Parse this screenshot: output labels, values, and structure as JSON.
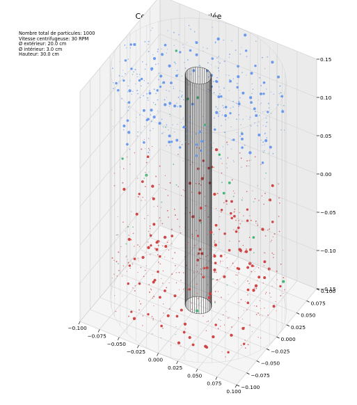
{
  "chart_data": {
    "type": "scatter",
    "projection": "3d",
    "title": "Centrifugeuse simulée",
    "info_lines": [
      "Nombre total de particules: 1000",
      "Vitesse centrifugeuse: 30 RPM",
      "Ø extérieur: 20.0 cm",
      "Ø intérieur: 3.0 cm",
      "Hauteur: 30.0 cm"
    ],
    "xlim": [
      -0.1,
      0.1
    ],
    "ylim": [
      -0.1,
      0.1
    ],
    "zlim": [
      -0.15,
      0.15
    ],
    "x_ticks": [
      "−0.100",
      "−0.075",
      "−0.050",
      "−0.025",
      "0.000",
      "0.025",
      "0.050",
      "0.075",
      "0.100"
    ],
    "y_ticks": [
      "−0.100",
      "−0.075",
      "−0.050",
      "−0.025",
      "0.000",
      "0.025",
      "0.050",
      "0.075",
      "0.100"
    ],
    "z_ticks": [
      "−0.15",
      "−0.10",
      "−0.05",
      "0.00",
      "0.05",
      "0.10",
      "0.15"
    ],
    "grid": true,
    "cylinders": {
      "outer_radius": 0.1,
      "inner_radius": 0.015,
      "height": 0.3,
      "outer_color": "#bbbbbb",
      "inner_color": "#222222"
    },
    "series": [
      {
        "color": "#6495ED",
        "count": 420,
        "z_range": [
          0.08,
          0.15
        ]
      },
      {
        "color": "#3CB371",
        "count": 60,
        "z_range": [
          -0.12,
          0.12
        ]
      },
      {
        "color": "#CD3C3C",
        "count": 520,
        "z_range": [
          -0.15,
          0.02
        ]
      }
    ]
  }
}
